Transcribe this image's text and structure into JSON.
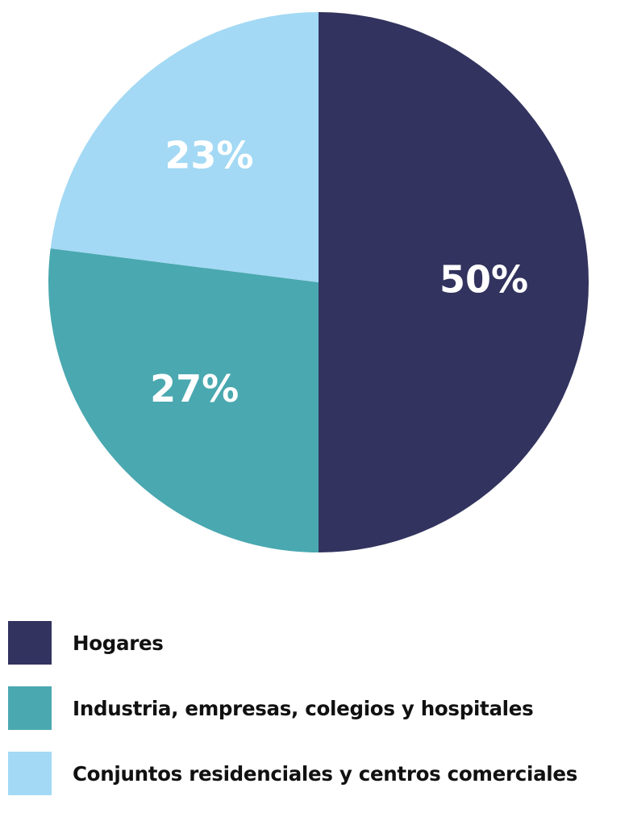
{
  "chart_data": {
    "type": "pie",
    "categories": [
      "Hogares",
      "Industria, empresas, colegios y hospitales",
      "Conjuntos residenciales y centros comerciales"
    ],
    "values": [
      50,
      27,
      23
    ],
    "data_labels": [
      "50%",
      "27%",
      "23%"
    ],
    "colors": [
      "#32335e",
      "#4aa8b0",
      "#a3d9f4"
    ],
    "legend_position": "bottom-left",
    "start_angle": "12 o'clock",
    "direction": "clockwise",
    "title": ""
  },
  "legend": {
    "items": [
      {
        "label": "Hogares",
        "color": "#32335e"
      },
      {
        "label": "Industria, empresas, colegios y hospitales",
        "color": "#4aa8b0"
      },
      {
        "label": "Conjuntos residenciales y centros comerciales",
        "color": "#a3d9f4"
      }
    ]
  }
}
